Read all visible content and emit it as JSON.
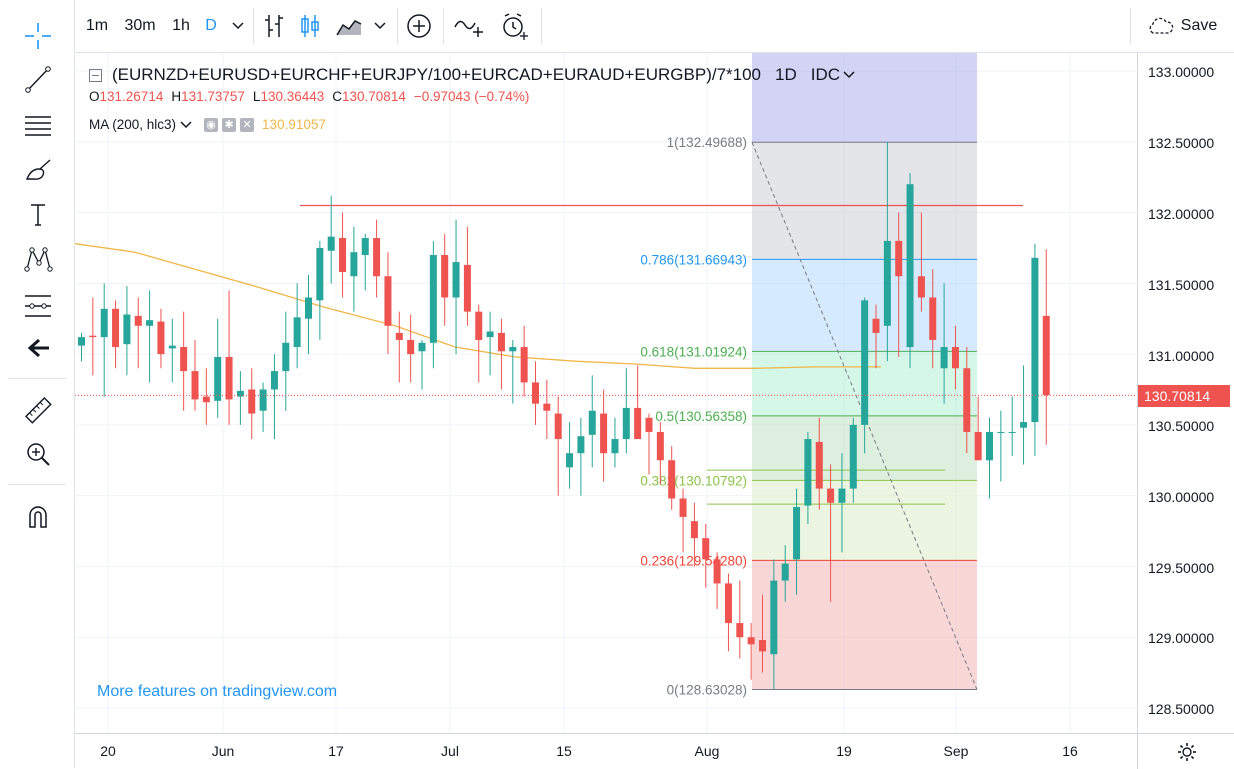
{
  "toolbar": {
    "intervals": [
      "1m",
      "30m",
      "1h",
      "D"
    ],
    "save_label": "Save"
  },
  "left_tools": [
    "crosshair-icon",
    "trend-line-icon",
    "fib-retracement-icon",
    "brush-icon",
    "text-icon",
    "pattern-icon",
    "measure-tools-icon",
    "back-arrow-icon",
    "ruler-icon",
    "zoom-in-icon",
    "magnet-icon"
  ],
  "legend": {
    "symbol": "(EURNZD+EURUSD+EURCHF+EURJPY/100+EURCAD+EURAUD+EURGBP)/7*100",
    "interval": "1D",
    "source": "IDC",
    "o_key": "O",
    "o": "131.26714",
    "h_key": "H",
    "h": "131.73757",
    "l_key": "L",
    "l": "130.36443",
    "c_key": "C",
    "c": "130.70814",
    "change": "−0.97043 (−0.74%)",
    "ma_label": "MA (200, hlc3)",
    "ma_value": "130.91057"
  },
  "link_text": "More features on tradingview.com",
  "last_price_label": "130.70814",
  "colors": {
    "up": "#26a69a",
    "down": "#ef5350",
    "ma": "#f0b648",
    "accent": "#2196f3"
  },
  "chart_data": {
    "type": "candlestick",
    "price_axis_labels": [
      "133.00000",
      "132.50000",
      "132.00000",
      "131.50000",
      "131.00000",
      "130.50000",
      "130.00000",
      "129.50000",
      "129.00000",
      "128.50000"
    ],
    "time_axis_labels": [
      "20",
      "Jun",
      "17",
      "Jul",
      "15",
      "Aug",
      "19",
      "Sep",
      "16"
    ],
    "ylim": [
      128.35,
      133.15
    ],
    "last_price": 130.70814,
    "horizontal_line": 132.05,
    "fibonacci": {
      "high": 132.49688,
      "low": 128.63028,
      "levels": [
        {
          "ratio": 1,
          "price": 132.49688,
          "label": "1(132.49688)",
          "color": "#787b86"
        },
        {
          "ratio": 0.786,
          "price": 131.66943,
          "label": "0.786(131.66943)",
          "color": "#2196f3"
        },
        {
          "ratio": 0.618,
          "price": 131.01924,
          "label": "0.618(131.01924)",
          "color": "#4caf50"
        },
        {
          "ratio": 0.5,
          "price": 130.56358,
          "label": "0.5(130.56358)",
          "color": "#4caf50"
        },
        {
          "ratio": 0.382,
          "price": 130.10792,
          "label": "0.382(130.10792)",
          "color": "#8bc34a"
        },
        {
          "ratio": 0.236,
          "price": 129.5428,
          "label": "0.236(129.54280)",
          "color": "#f44336"
        },
        {
          "ratio": 0,
          "price": 128.63028,
          "label": "0(128.63028)",
          "color": "#787b86"
        }
      ]
    },
    "candles": [
      [
        131.06,
        131.15,
        130.95,
        131.12
      ],
      [
        131.13,
        131.4,
        130.85,
        131.12
      ],
      [
        131.12,
        131.5,
        130.7,
        131.32
      ],
      [
        131.32,
        131.38,
        130.9,
        131.05
      ],
      [
        131.07,
        131.48,
        130.85,
        131.28
      ],
      [
        131.27,
        131.4,
        130.9,
        131.2
      ],
      [
        131.2,
        131.45,
        130.8,
        131.24
      ],
      [
        131.23,
        131.32,
        130.9,
        131.0
      ],
      [
        131.04,
        131.25,
        130.8,
        131.06
      ],
      [
        131.05,
        131.3,
        130.6,
        130.88
      ],
      [
        130.88,
        131.1,
        130.6,
        130.68
      ],
      [
        130.7,
        130.9,
        130.5,
        130.66
      ],
      [
        130.67,
        131.25,
        130.55,
        130.98
      ],
      [
        130.98,
        131.45,
        130.5,
        130.68
      ],
      [
        130.7,
        130.88,
        130.5,
        130.74
      ],
      [
        130.75,
        130.9,
        130.4,
        130.58
      ],
      [
        130.6,
        130.8,
        130.45,
        130.75
      ],
      [
        130.75,
        131.0,
        130.4,
        130.88
      ],
      [
        130.88,
        131.3,
        130.6,
        131.08
      ],
      [
        131.05,
        131.5,
        130.9,
        131.26
      ],
      [
        131.25,
        131.56,
        131.0,
        131.4
      ],
      [
        131.38,
        131.8,
        131.1,
        131.75
      ],
      [
        131.73,
        132.12,
        131.5,
        131.83
      ],
      [
        131.82,
        132.0,
        131.4,
        131.58
      ],
      [
        131.55,
        131.9,
        131.3,
        131.72
      ],
      [
        131.7,
        131.85,
        131.45,
        131.82
      ],
      [
        131.82,
        131.95,
        131.4,
        131.55
      ],
      [
        131.55,
        131.72,
        131.0,
        131.2
      ],
      [
        131.15,
        131.3,
        130.8,
        131.1
      ],
      [
        131.1,
        131.28,
        130.8,
        131.0
      ],
      [
        131.02,
        131.1,
        130.75,
        131.08
      ],
      [
        131.08,
        131.8,
        130.9,
        131.7
      ],
      [
        131.7,
        131.85,
        131.2,
        131.4
      ],
      [
        131.4,
        131.95,
        131.0,
        131.65
      ],
      [
        131.63,
        131.9,
        131.2,
        131.3
      ],
      [
        131.3,
        131.35,
        130.8,
        131.1
      ],
      [
        131.12,
        131.3,
        130.85,
        131.16
      ],
      [
        131.15,
        131.25,
        130.75,
        131.02
      ],
      [
        131.02,
        131.1,
        130.65,
        131.05
      ],
      [
        131.05,
        131.2,
        130.7,
        130.8
      ],
      [
        130.8,
        130.95,
        130.5,
        130.65
      ],
      [
        130.65,
        130.82,
        130.4,
        130.6
      ],
      [
        130.58,
        130.7,
        130.0,
        130.4
      ],
      [
        130.2,
        130.52,
        130.05,
        130.3
      ],
      [
        130.3,
        130.55,
        130.0,
        130.42
      ],
      [
        130.43,
        130.85,
        130.2,
        130.6
      ],
      [
        130.58,
        130.75,
        130.1,
        130.3
      ],
      [
        130.3,
        130.55,
        130.2,
        130.4
      ],
      [
        130.4,
        130.9,
        130.3,
        130.62
      ],
      [
        130.62,
        130.92,
        130.4,
        130.4
      ],
      [
        130.55,
        130.58,
        130.15,
        130.45
      ],
      [
        130.45,
        130.52,
        130.08,
        130.25
      ],
      [
        130.25,
        130.35,
        129.9,
        129.98
      ],
      [
        129.98,
        130.05,
        129.6,
        129.85
      ],
      [
        129.82,
        129.95,
        129.5,
        129.7
      ],
      [
        129.7,
        129.8,
        129.35,
        129.55
      ],
      [
        129.55,
        129.6,
        129.2,
        129.38
      ],
      [
        129.38,
        129.45,
        128.9,
        129.1
      ],
      [
        129.1,
        129.4,
        128.85,
        129.0
      ],
      [
        129.0,
        129.1,
        128.7,
        128.95
      ],
      [
        128.98,
        129.3,
        128.75,
        128.9
      ],
      [
        128.88,
        129.55,
        128.63,
        129.4
      ],
      [
        129.4,
        129.65,
        129.25,
        129.52
      ],
      [
        129.55,
        130.05,
        129.3,
        129.92
      ],
      [
        129.93,
        130.45,
        129.8,
        130.4
      ],
      [
        130.38,
        130.55,
        129.9,
        130.05
      ],
      [
        130.05,
        130.22,
        129.25,
        129.95
      ],
      [
        129.95,
        130.3,
        129.6,
        130.05
      ],
      [
        130.05,
        130.55,
        129.95,
        130.5
      ],
      [
        130.5,
        131.4,
        130.3,
        131.38
      ],
      [
        131.25,
        131.35,
        130.9,
        131.15
      ],
      [
        131.2,
        132.5,
        130.95,
        131.8
      ],
      [
        131.8,
        132.0,
        130.98,
        131.55
      ],
      [
        131.05,
        132.28,
        130.9,
        132.2
      ],
      [
        131.55,
        132.0,
        131.3,
        131.4
      ],
      [
        131.4,
        131.6,
        130.9,
        131.1
      ],
      [
        130.9,
        131.5,
        130.65,
        131.05
      ],
      [
        131.05,
        131.2,
        130.75,
        130.9
      ],
      [
        130.9,
        131.05,
        130.3,
        130.45
      ],
      [
        130.45,
        130.7,
        130.25,
        130.25
      ],
      [
        130.25,
        130.55,
        129.98,
        130.45
      ],
      [
        130.45,
        130.6,
        130.1,
        130.45
      ],
      [
        130.45,
        130.7,
        130.28,
        130.45
      ],
      [
        130.48,
        130.92,
        130.22,
        130.52
      ],
      [
        130.52,
        131.78,
        130.28,
        131.68
      ],
      [
        131.27,
        131.74,
        130.36,
        130.71
      ]
    ]
  }
}
